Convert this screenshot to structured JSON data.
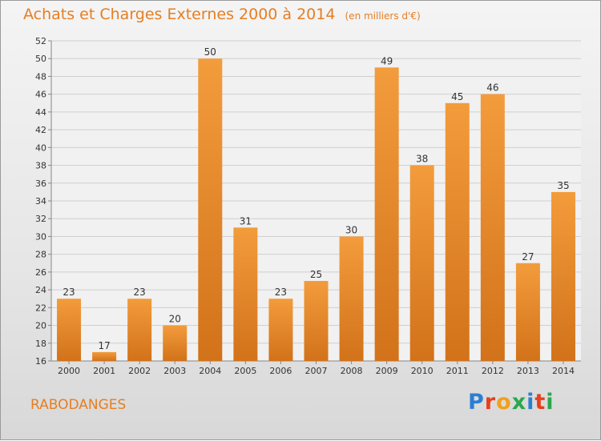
{
  "header": {
    "title": "Achats et Charges Externes 2000 à 2014",
    "unit": "(en milliers d'€)"
  },
  "footer": {
    "town": "RABODANGES",
    "logo": "Proxiti"
  },
  "colors": {
    "bar": "#f39c3c",
    "bar_dark": "#d2721a",
    "title": "#e67e22"
  },
  "chart_data": {
    "type": "bar",
    "title": "Achats et Charges Externes 2000 à 2014",
    "subtitle": "(en milliers d'€)",
    "xlabel": "",
    "ylabel": "",
    "categories": [
      "2000",
      "2001",
      "2002",
      "2003",
      "2004",
      "2005",
      "2006",
      "2007",
      "2008",
      "2009",
      "2010",
      "2011",
      "2012",
      "2013",
      "2014"
    ],
    "values": [
      23,
      17,
      23,
      20,
      50,
      31,
      23,
      25,
      30,
      49,
      38,
      45,
      46,
      27,
      35
    ],
    "ylim": [
      16,
      52
    ],
    "yticks": [
      16,
      18,
      20,
      22,
      24,
      26,
      28,
      30,
      32,
      34,
      36,
      38,
      40,
      42,
      44,
      46,
      48,
      50,
      52
    ],
    "grid": true,
    "legend": "none"
  }
}
